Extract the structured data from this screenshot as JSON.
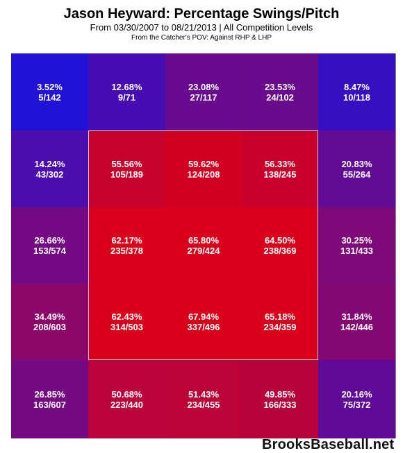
{
  "title": "Jason Heyward: Percentage Swings/Pitch",
  "subtitle": "From 03/30/2007 to 08/21/2013 | All Competition Levels",
  "note": "From the Catcher's POV:  Against RHP & LHP",
  "watermark": "BrooksBaseball.net",
  "colors": {
    "low": "#1a12e0",
    "high": "#d8001a",
    "zone_border": "#cccccc"
  },
  "chart_data": {
    "type": "heatmap",
    "title": "Jason Heyward: Percentage Swings/Pitch",
    "rows": 5,
    "cols": 5,
    "strike_zone": {
      "rows": [
        1,
        3
      ],
      "cols": [
        1,
        3
      ]
    },
    "cells": [
      [
        {
          "pct": "3.52%",
          "ratio": "5/142",
          "value": 3.52
        },
        {
          "pct": "12.68%",
          "ratio": "9/71",
          "value": 12.68
        },
        {
          "pct": "23.08%",
          "ratio": "27/117",
          "value": 23.08
        },
        {
          "pct": "23.53%",
          "ratio": "24/102",
          "value": 23.53
        },
        {
          "pct": "8.47%",
          "ratio": "10/118",
          "value": 8.47
        }
      ],
      [
        {
          "pct": "14.24%",
          "ratio": "43/302",
          "value": 14.24
        },
        {
          "pct": "55.56%",
          "ratio": "105/189",
          "value": 55.56
        },
        {
          "pct": "59.62%",
          "ratio": "124/208",
          "value": 59.62
        },
        {
          "pct": "56.33%",
          "ratio": "138/245",
          "value": 56.33
        },
        {
          "pct": "20.83%",
          "ratio": "55/264",
          "value": 20.83
        }
      ],
      [
        {
          "pct": "26.66%",
          "ratio": "153/574",
          "value": 26.66
        },
        {
          "pct": "62.17%",
          "ratio": "235/378",
          "value": 62.17
        },
        {
          "pct": "65.80%",
          "ratio": "279/424",
          "value": 65.8
        },
        {
          "pct": "64.50%",
          "ratio": "238/369",
          "value": 64.5
        },
        {
          "pct": "30.25%",
          "ratio": "131/433",
          "value": 30.25
        }
      ],
      [
        {
          "pct": "34.49%",
          "ratio": "208/603",
          "value": 34.49
        },
        {
          "pct": "62.43%",
          "ratio": "314/503",
          "value": 62.43
        },
        {
          "pct": "67.94%",
          "ratio": "337/496",
          "value": 67.94
        },
        {
          "pct": "65.18%",
          "ratio": "234/359",
          "value": 65.18
        },
        {
          "pct": "31.84%",
          "ratio": "142/446",
          "value": 31.84
        }
      ],
      [
        {
          "pct": "26.85%",
          "ratio": "163/607",
          "value": 26.85
        },
        {
          "pct": "50.68%",
          "ratio": "223/440",
          "value": 50.68
        },
        {
          "pct": "51.43%",
          "ratio": "234/455",
          "value": 51.43
        },
        {
          "pct": "49.85%",
          "ratio": "166/333",
          "value": 49.85
        },
        {
          "pct": "20.16%",
          "ratio": "75/372",
          "value": 20.16
        }
      ]
    ]
  }
}
